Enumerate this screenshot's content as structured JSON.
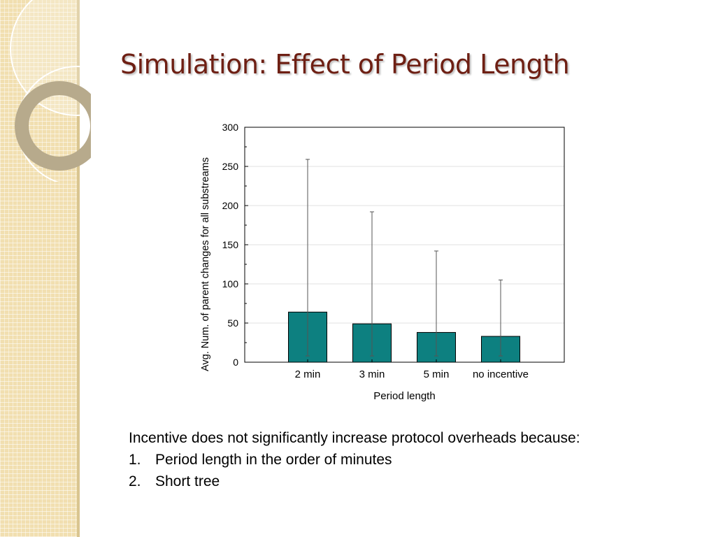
{
  "slide": {
    "title": "Simulation: Effect of Period Length",
    "intro": "Incentive does not significantly increase protocol overheads because:",
    "points": [
      {
        "number": "1.",
        "text": "Period length in the order of minutes"
      },
      {
        "number": "2.",
        "text": "Short tree"
      }
    ]
  },
  "colors": {
    "bar": "#0d8080",
    "title": "#6e1f13",
    "strip": "#f1dfb0"
  },
  "chart_data": {
    "type": "bar",
    "categories": [
      "2 min",
      "3 min",
      "5 min",
      "no incentive"
    ],
    "values": [
      64,
      49,
      38,
      33
    ],
    "error_low": [
      8,
      8,
      8,
      8
    ],
    "error_high": [
      259,
      192,
      142,
      105
    ],
    "xlabel": "Period length",
    "ylabel": "Avg. Num. of parent changes for all substreams",
    "ylim": [
      0,
      300
    ],
    "yticks": [
      0,
      50,
      100,
      150,
      200,
      250,
      300
    ],
    "grid": true
  }
}
